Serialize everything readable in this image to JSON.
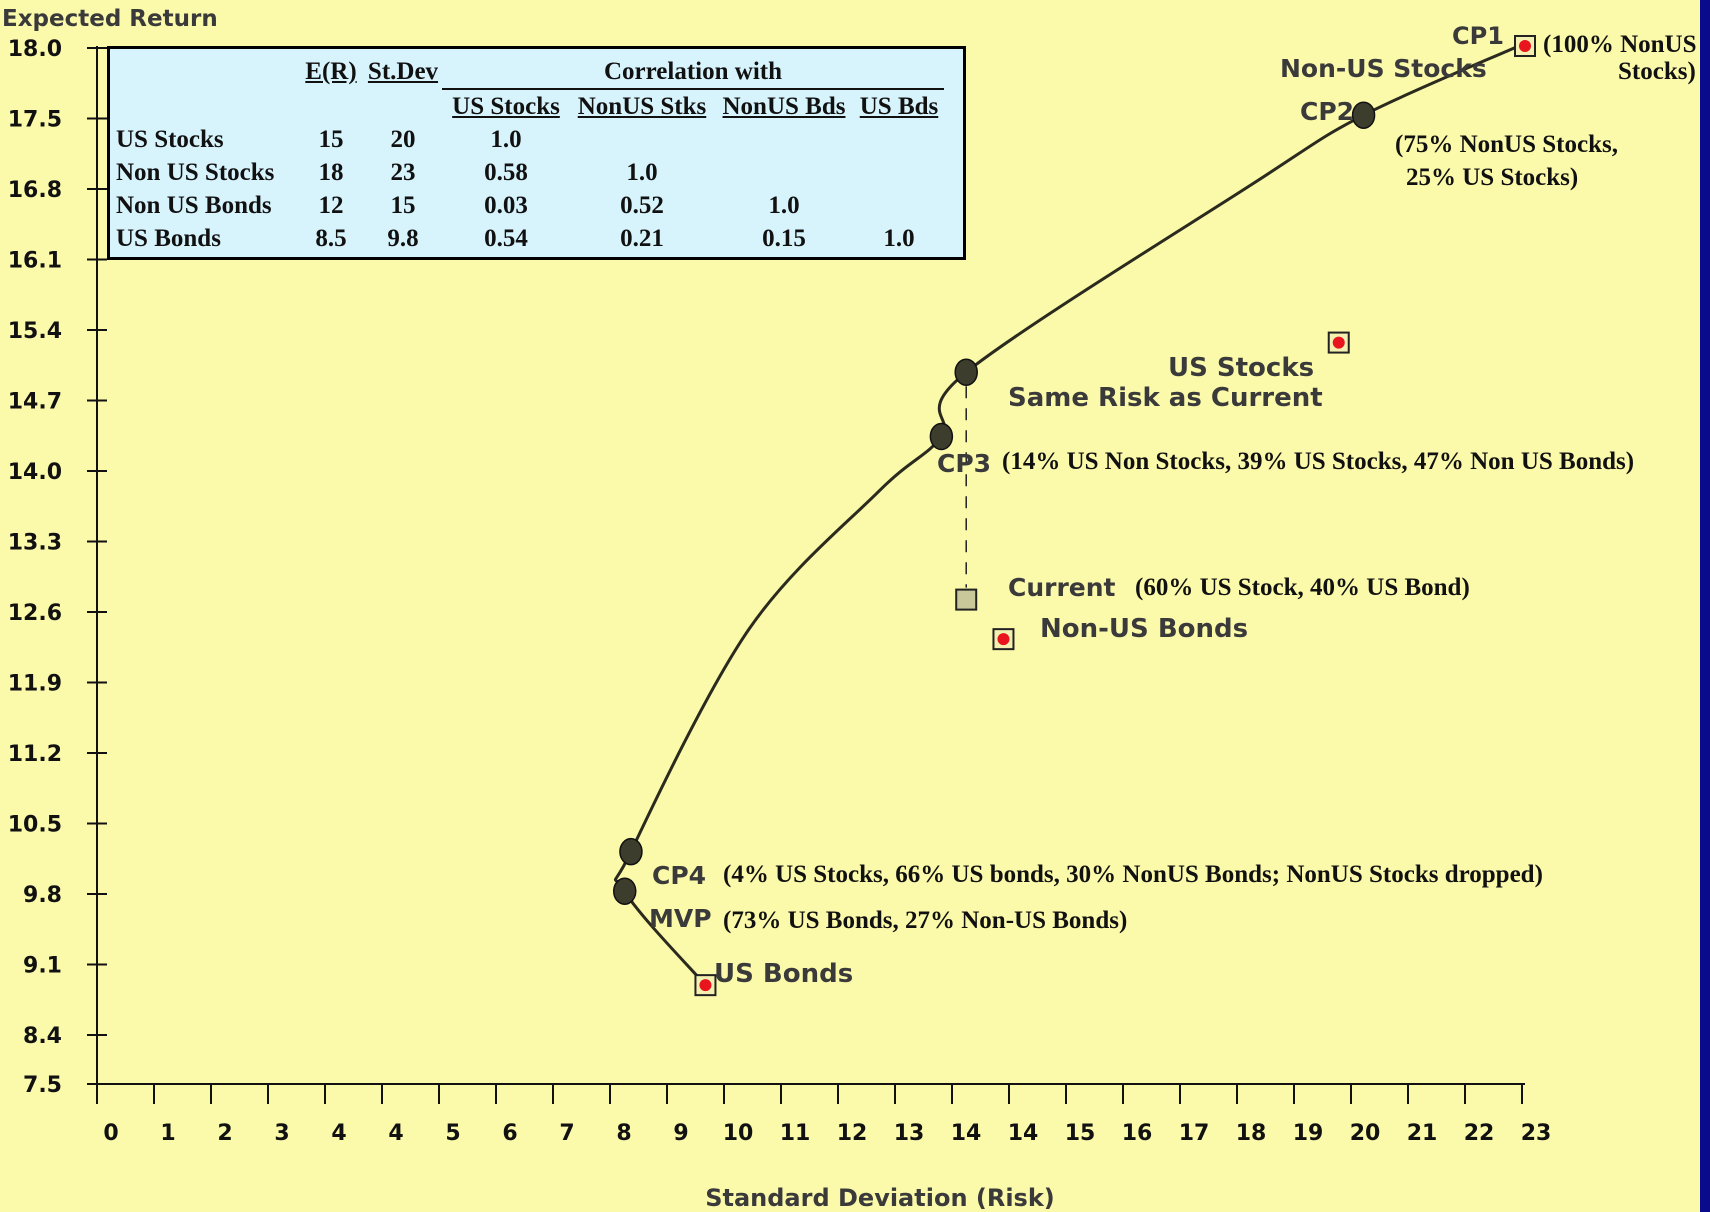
{
  "chart_data": {
    "type": "scatter",
    "ylabel": "Expected Return",
    "xlabel": "Standard Deviation (Risk)",
    "xlim": [
      0,
      23
    ],
    "ylim": [
      7.5,
      18.0
    ],
    "x_ticks": [
      "0",
      "1",
      "2",
      "3",
      "4",
      "4",
      "5",
      "6",
      "7",
      "8",
      "9",
      "10",
      "11",
      "12",
      "13",
      "14",
      "14",
      "15",
      "16",
      "17",
      "18",
      "19",
      "20",
      "21",
      "22",
      "23"
    ],
    "y_ticks": [
      "18.0",
      "17.5",
      "16.8",
      "16.1",
      "15.4",
      "14.7",
      "14.0",
      "13.3",
      "12.6",
      "11.9",
      "11.2",
      "10.5",
      "9.8",
      "9.1",
      "8.4",
      "7.5"
    ],
    "frontier": [
      {
        "x": 9.8,
        "y": 8.5
      },
      {
        "x": 8.5,
        "y": 9.45
      },
      {
        "x": 8.6,
        "y": 9.85
      },
      {
        "x": 10.5,
        "y": 12.1
      },
      {
        "x": 12.6,
        "y": 13.5
      },
      {
        "x": 13.6,
        "y": 14.05
      },
      {
        "x": 14.0,
        "y": 14.7
      },
      {
        "x": 18.6,
        "y": 16.6
      },
      {
        "x": 20.4,
        "y": 17.3
      },
      {
        "x": 22.9,
        "y": 18.0
      }
    ],
    "assets": [
      {
        "name": "Non-US Stocks",
        "x": 23,
        "y": 18
      },
      {
        "name": "US Stocks",
        "x": 20,
        "y": 15
      },
      {
        "name": "Non-US Bonds",
        "x": 14.6,
        "y": 12.0
      },
      {
        "name": "US Bonds",
        "x": 9.8,
        "y": 8.5
      }
    ],
    "portfolios": [
      {
        "name": "CP1",
        "x": 23,
        "y": 18,
        "note": "(100% NonUS Stocks)"
      },
      {
        "name": "CP2",
        "x": 20.4,
        "y": 17.3,
        "note": "(75% NonUS Stocks, 25% US Stocks)"
      },
      {
        "name": "Same Risk as Current",
        "x": 14.0,
        "y": 14.7
      },
      {
        "name": "CP3",
        "x": 13.6,
        "y": 14.05,
        "note": "(14% US Non Stocks, 39% US Stocks, 47% Non US Bonds)"
      },
      {
        "name": "Current",
        "x": 14.0,
        "y": 12.4,
        "note": "(60% US Stock, 40% US Bond)"
      },
      {
        "name": "CP4",
        "x": 8.6,
        "y": 9.85,
        "note": "(4% US Stocks, 66% US bonds, 30% NonUS Bonds; NonUS Stocks dropped)"
      },
      {
        "name": "MVP",
        "x": 8.5,
        "y": 9.45,
        "note": "(73% US Bonds, 27% Non-US Bonds)"
      }
    ],
    "table": {
      "headers": [
        "E(R)",
        "St.Dev",
        "Correlation with",
        "US Stocks",
        "NonUS Stks",
        "NonUS Bds",
        "US Bds"
      ],
      "rows": [
        [
          "US Stocks",
          "15",
          "20",
          "1.0",
          "",
          "",
          ""
        ],
        [
          "Non US Stocks",
          "18",
          "23",
          "0.58",
          "1.0",
          "",
          ""
        ],
        [
          "Non US Bonds",
          "12",
          "15",
          "0.03",
          "0.52",
          "1.0",
          ""
        ],
        [
          "US Bonds",
          "8.5",
          "9.8",
          "0.54",
          "0.21",
          "0.15",
          "1.0"
        ]
      ]
    }
  },
  "labels": {
    "cp1": "CP1",
    "cp1_note_1": "(100% NonUS",
    "cp1_note_2": "Stocks)",
    "non_us_stocks": "Non-US Stocks",
    "cp2": "CP2",
    "cp2_note_1": "(75% NonUS Stocks,",
    "cp2_note_2": "25% US Stocks)",
    "us_stocks": "US Stocks",
    "same_risk": "Same Risk as Current",
    "cp3": "CP3",
    "cp3_note": "(14% US Non Stocks, 39% US Stocks, 47% Non US Bonds)",
    "current": "Current",
    "current_note": "(60% US Stock, 40% US Bond)",
    "non_us_bonds": "Non-US Bonds",
    "cp4": "CP4",
    "cp4_note": "(4% US Stocks, 66% US bonds, 30% NonUS Bonds; NonUS Stocks dropped)",
    "mvp": "MVP",
    "mvp_note": "(73% US Bonds, 27% Non-US Bonds)",
    "us_bonds": "US Bonds"
  },
  "colors": {
    "background": "#fbf9aa",
    "border": "#0a0a8c",
    "table_bg": "#d7f4fd",
    "asset_marker": "#e8141e",
    "portfolio_marker": "#3d3d2e",
    "current_marker": "#c8c89a"
  }
}
